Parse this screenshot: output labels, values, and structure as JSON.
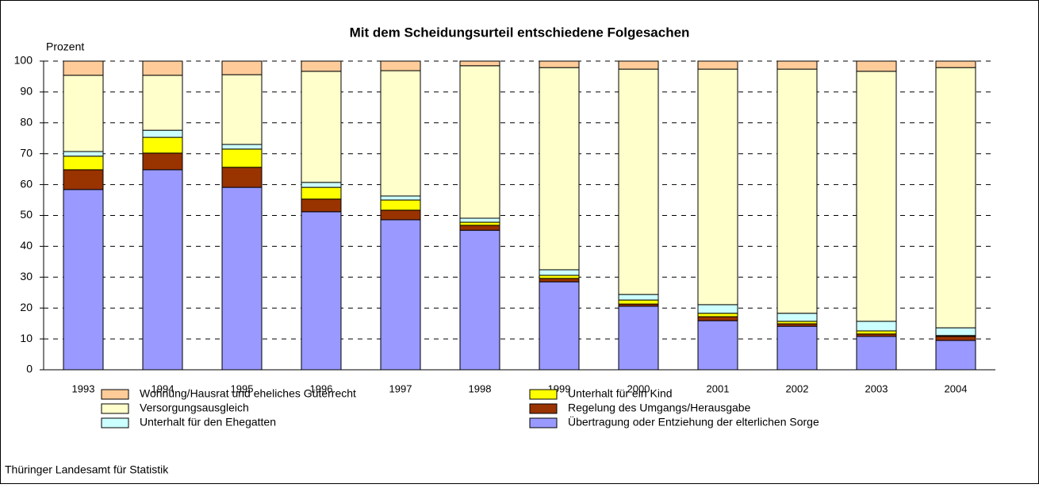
{
  "chart_data": {
    "type": "stacked_bar",
    "title": "Mit dem Scheidungsurteil entschiedene Folgesachen",
    "y_label": "Prozent",
    "source": "Thüringer Landesamt für Statistik",
    "categories": [
      "1993",
      "1994",
      "1995",
      "1996",
      "1997",
      "1998",
      "1999",
      "2000",
      "2001",
      "2002",
      "2003",
      "2004"
    ],
    "series": [
      {
        "name": "Übertragung oder Entziehung der elterlichen Sorge",
        "color": "#9999ff",
        "values": [
          58.4,
          64.8,
          59.1,
          51.2,
          48.6,
          45.2,
          28.5,
          20.6,
          15.9,
          14.1,
          10.8,
          9.5
        ]
      },
      {
        "name": "Regelung des Umgangs/Herausgabe",
        "color": "#993300",
        "values": [
          6.4,
          5.4,
          6.5,
          4.1,
          3.1,
          1.6,
          1.1,
          0.7,
          1.3,
          0.8,
          0.8,
          1.3
        ]
      },
      {
        "name": "Unterhalt für ein Kind",
        "color": "#ffff00",
        "values": [
          4.4,
          5.1,
          5.9,
          3.8,
          3.3,
          1.0,
          1.0,
          1.3,
          1.1,
          0.8,
          1.0,
          0.3
        ]
      },
      {
        "name": "Unterhalt für den Ehegatten",
        "color": "#ccffff",
        "values": [
          1.5,
          2.3,
          1.5,
          1.6,
          1.3,
          1.3,
          1.8,
          1.8,
          2.8,
          2.6,
          3.1,
          2.5
        ]
      },
      {
        "name": "Versorgungsausgleich",
        "color": "#ffffcc",
        "values": [
          24.7,
          17.8,
          22.6,
          36.0,
          40.6,
          49.4,
          65.5,
          73.0,
          76.3,
          79.1,
          81.0,
          84.3
        ]
      },
      {
        "name": "Wohnung/Hausrat und eheliches Güterrecht",
        "color": "#ffcc99",
        "values": [
          4.6,
          4.6,
          4.4,
          3.3,
          3.1,
          1.5,
          2.1,
          2.6,
          2.6,
          2.6,
          3.3,
          2.1
        ]
      }
    ],
    "ylim": [
      0,
      100
    ],
    "yticks": [
      0,
      10,
      20,
      30,
      40,
      50,
      60,
      70,
      80,
      90,
      100
    ],
    "grid": true
  }
}
